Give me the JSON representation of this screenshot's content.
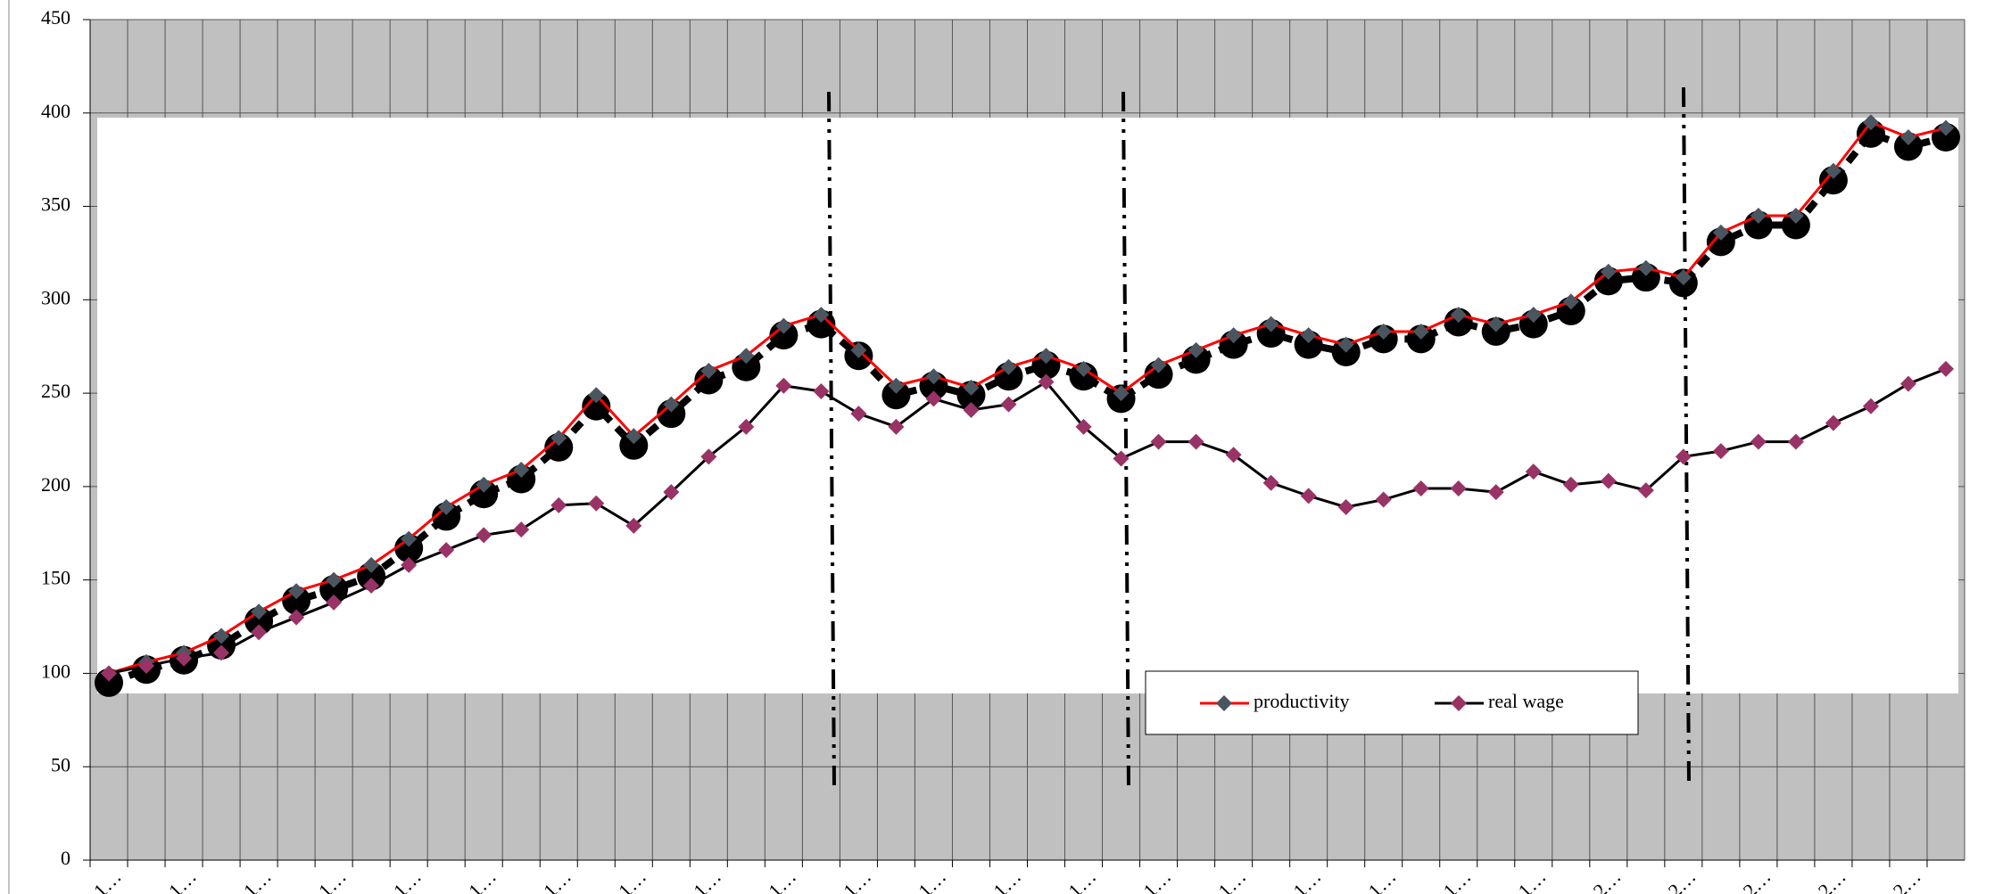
{
  "chart_data": {
    "type": "line",
    "categories": [
      "1…",
      null,
      "1…",
      null,
      "1…",
      null,
      "1…",
      null,
      "1…",
      null,
      "1…",
      null,
      "1…",
      null,
      "1…",
      null,
      "1…",
      null,
      "1…",
      null,
      "1…",
      null,
      "1…",
      null,
      "1…",
      null,
      "1…",
      null,
      "1…",
      null,
      "1…",
      null,
      "1…",
      null,
      "1…",
      null,
      "1…",
      null,
      "1…",
      null,
      "2…",
      null,
      "2…",
      null,
      "2…",
      null,
      "2…",
      null,
      "2…",
      null
    ],
    "series": [
      {
        "name": "productivity",
        "color": "#ff0000",
        "marker_color": "#4a5560",
        "values": [
          100,
          106,
          111,
          120,
          133,
          144,
          150,
          158,
          172,
          189,
          201,
          209,
          226,
          249,
          227,
          244,
          262,
          270,
          286,
          292,
          273,
          254,
          259,
          253,
          264,
          270,
          263,
          250,
          265,
          273,
          281,
          287,
          281,
          276,
          283,
          283,
          292,
          287,
          292,
          299,
          315,
          317,
          312,
          336,
          345,
          345,
          369,
          395,
          387,
          392
        ]
      },
      {
        "name": "real wage",
        "color": "#000000",
        "marker_color": "#993366",
        "values": [
          100,
          104,
          108,
          111,
          122,
          130,
          138,
          147,
          158,
          166,
          174,
          177,
          190,
          191,
          179,
          197,
          216,
          232,
          254,
          251,
          239,
          232,
          247,
          241,
          244,
          256,
          232,
          215,
          224,
          224,
          217,
          202,
          195,
          189,
          193,
          199,
          199,
          197,
          208,
          201,
          203,
          198,
          216,
          219,
          224,
          224,
          234,
          243,
          255,
          263
        ]
      },
      {
        "color": "#000000",
        "marker_color": "#000000",
        "values": [
          95,
          102,
          107,
          115,
          128,
          139,
          145,
          152,
          167,
          184,
          196,
          204,
          221,
          243,
          222,
          239,
          257,
          264,
          281,
          287,
          270,
          249,
          254,
          249,
          259,
          265,
          259,
          247,
          260,
          268,
          276,
          282,
          276,
          272,
          279,
          279,
          288,
          283,
          287,
          294,
          310,
          312,
          309,
          331,
          340,
          340,
          364,
          389,
          382,
          387
        ]
      }
    ],
    "ylim": [
      0,
      450
    ],
    "yticks": [
      0,
      50,
      100,
      150,
      200,
      250,
      300,
      350,
      400,
      450
    ],
    "grid": true
  }
}
